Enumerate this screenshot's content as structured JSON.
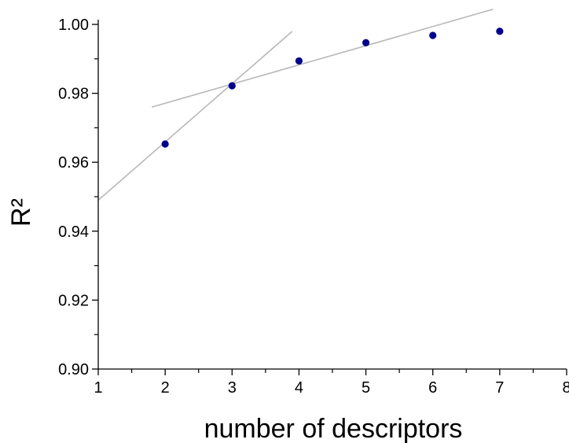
{
  "chart_data": {
    "type": "scatter",
    "title": "",
    "xlabel": "number of descriptors",
    "ylabel": "R²",
    "xlim": [
      1,
      8
    ],
    "ylim": [
      0.9,
      1.0
    ],
    "x_ticks": [
      1,
      2,
      3,
      4,
      5,
      6,
      7,
      8
    ],
    "x_tick_labels": [
      "1",
      "2",
      "3",
      "4",
      "5",
      "6",
      "7",
      "8"
    ],
    "y_ticks": [
      0.9,
      0.92,
      0.94,
      0.96,
      0.98,
      1.0
    ],
    "y_tick_labels": [
      "0.90",
      "0.92",
      "0.94",
      "0.96",
      "0.98",
      "1.00"
    ],
    "grid": false,
    "legend": "none",
    "series": [
      {
        "x": [
          2,
          3,
          4,
          5,
          6,
          7
        ],
        "y": [
          0.9653,
          0.9822,
          0.9894,
          0.9947,
          0.9968,
          0.998
        ],
        "color": "#00008b",
        "marker": "circle"
      }
    ],
    "trend_lines": [
      {
        "x": [
          1.0,
          3.9
        ],
        "y": [
          0.949,
          0.998
        ],
        "color": "#b8b8b8"
      },
      {
        "x": [
          1.8,
          6.9
        ],
        "y": [
          0.976,
          1.0044
        ],
        "color": "#b8b8b8"
      }
    ]
  }
}
